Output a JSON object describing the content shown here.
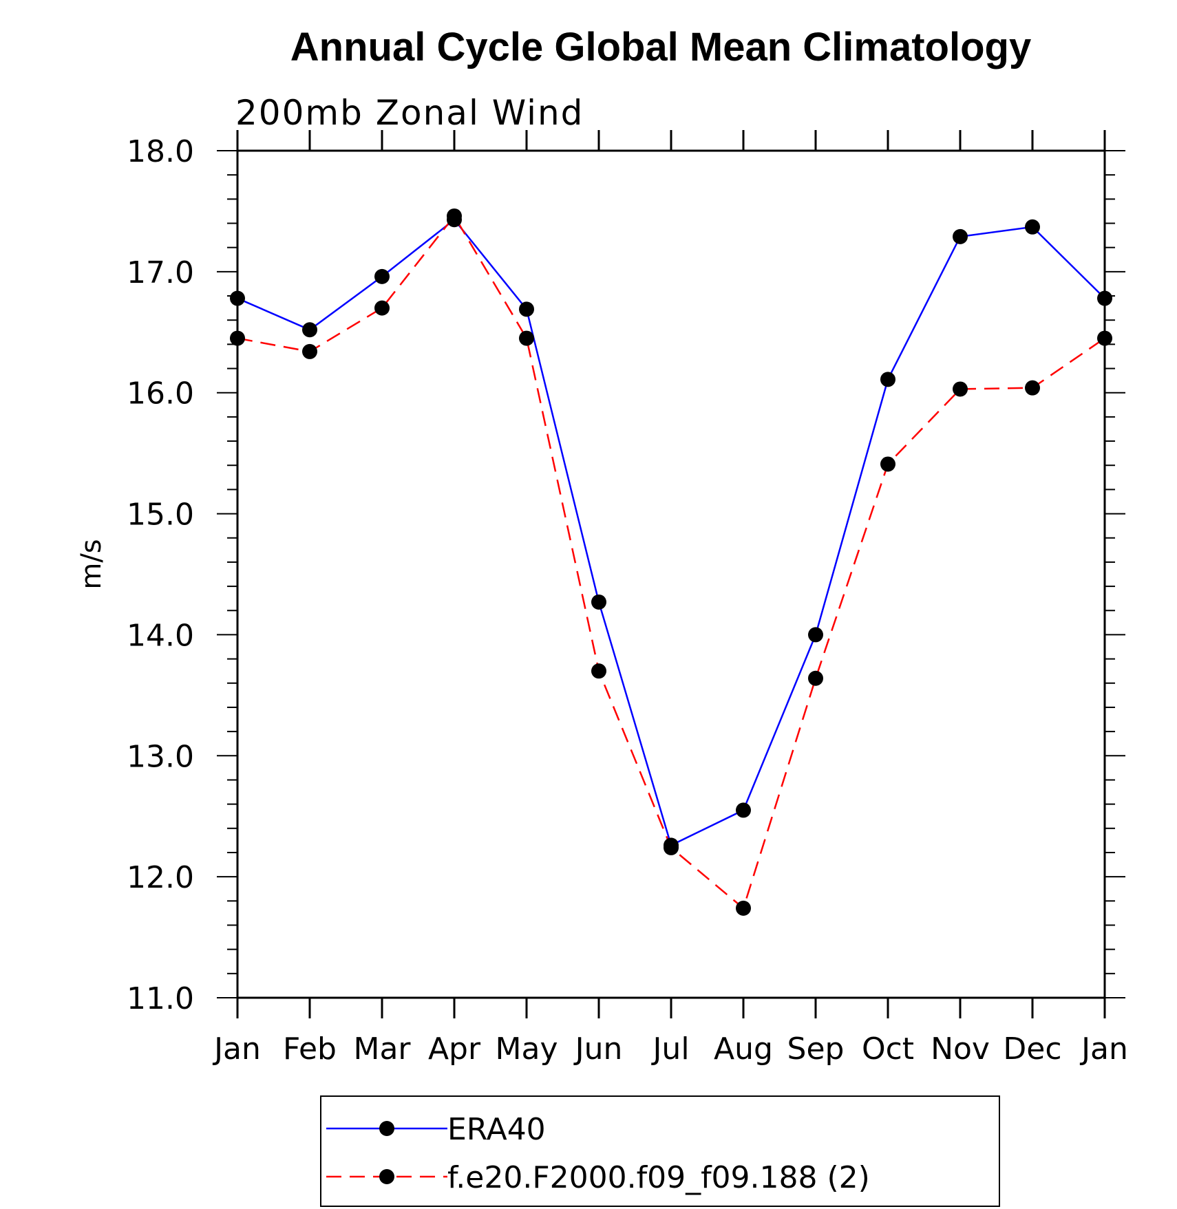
{
  "chart_data": {
    "type": "line",
    "title": "Annual Cycle Global Mean Climatology",
    "subtitle": "200mb Zonal Wind",
    "xlabel": "",
    "ylabel": "m/s",
    "categories": [
      "Jan",
      "Feb",
      "Mar",
      "Apr",
      "May",
      "Jun",
      "Jul",
      "Aug",
      "Sep",
      "Oct",
      "Nov",
      "Dec",
      "Jan"
    ],
    "ylim": [
      11.0,
      18.0
    ],
    "yticks": [
      "11.0",
      "12.0",
      "13.0",
      "14.0",
      "15.0",
      "16.0",
      "17.0",
      "18.0"
    ],
    "grid": false,
    "legend_position": "bottom",
    "series": [
      {
        "name": "ERA40",
        "color": "#0000ff",
        "dash": "solid",
        "values": [
          16.78,
          16.52,
          16.96,
          17.43,
          16.69,
          14.27,
          12.26,
          12.55,
          14.0,
          16.11,
          17.29,
          17.37,
          16.78
        ]
      },
      {
        "name": "f.e20.F2000.f09_f09.188 (2)",
        "color": "#ff0000",
        "dash": "dashed",
        "values": [
          16.45,
          16.34,
          16.7,
          17.46,
          16.45,
          13.7,
          12.24,
          11.74,
          13.64,
          15.41,
          16.03,
          16.04,
          16.45
        ]
      }
    ]
  }
}
